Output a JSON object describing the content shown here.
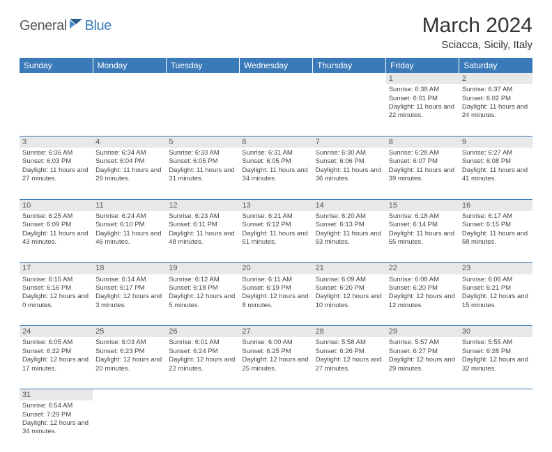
{
  "logo": {
    "text1": "General",
    "text2": "Blue"
  },
  "title": "March 2024",
  "location": "Sciacca, Sicily, Italy",
  "colors": {
    "header_bg": "#3a7ab8",
    "header_text": "#ffffff",
    "daynum_bg": "#e8e8e8",
    "rule": "#3a7ab8",
    "body_text": "#444"
  },
  "dayHeaders": [
    "Sunday",
    "Monday",
    "Tuesday",
    "Wednesday",
    "Thursday",
    "Friday",
    "Saturday"
  ],
  "weeks": [
    {
      "nums": [
        "",
        "",
        "",
        "",
        "",
        "1",
        "2"
      ],
      "cells": [
        null,
        null,
        null,
        null,
        null,
        {
          "sunrise": "6:38 AM",
          "sunset": "6:01 PM",
          "daylight": "11 hours and 22 minutes."
        },
        {
          "sunrise": "6:37 AM",
          "sunset": "6:02 PM",
          "daylight": "11 hours and 24 minutes."
        }
      ]
    },
    {
      "nums": [
        "3",
        "4",
        "5",
        "6",
        "7",
        "8",
        "9"
      ],
      "cells": [
        {
          "sunrise": "6:36 AM",
          "sunset": "6:03 PM",
          "daylight": "11 hours and 27 minutes."
        },
        {
          "sunrise": "6:34 AM",
          "sunset": "6:04 PM",
          "daylight": "11 hours and 29 minutes."
        },
        {
          "sunrise": "6:33 AM",
          "sunset": "6:05 PM",
          "daylight": "11 hours and 31 minutes."
        },
        {
          "sunrise": "6:31 AM",
          "sunset": "6:05 PM",
          "daylight": "11 hours and 34 minutes."
        },
        {
          "sunrise": "6:30 AM",
          "sunset": "6:06 PM",
          "daylight": "11 hours and 36 minutes."
        },
        {
          "sunrise": "6:28 AM",
          "sunset": "6:07 PM",
          "daylight": "11 hours and 39 minutes."
        },
        {
          "sunrise": "6:27 AM",
          "sunset": "6:08 PM",
          "daylight": "11 hours and 41 minutes."
        }
      ]
    },
    {
      "nums": [
        "10",
        "11",
        "12",
        "13",
        "14",
        "15",
        "16"
      ],
      "cells": [
        {
          "sunrise": "6:25 AM",
          "sunset": "6:09 PM",
          "daylight": "11 hours and 43 minutes."
        },
        {
          "sunrise": "6:24 AM",
          "sunset": "6:10 PM",
          "daylight": "11 hours and 46 minutes."
        },
        {
          "sunrise": "6:23 AM",
          "sunset": "6:11 PM",
          "daylight": "11 hours and 48 minutes."
        },
        {
          "sunrise": "6:21 AM",
          "sunset": "6:12 PM",
          "daylight": "11 hours and 51 minutes."
        },
        {
          "sunrise": "6:20 AM",
          "sunset": "6:13 PM",
          "daylight": "11 hours and 53 minutes."
        },
        {
          "sunrise": "6:18 AM",
          "sunset": "6:14 PM",
          "daylight": "11 hours and 55 minutes."
        },
        {
          "sunrise": "6:17 AM",
          "sunset": "6:15 PM",
          "daylight": "11 hours and 58 minutes."
        }
      ]
    },
    {
      "nums": [
        "17",
        "18",
        "19",
        "20",
        "21",
        "22",
        "23"
      ],
      "cells": [
        {
          "sunrise": "6:15 AM",
          "sunset": "6:16 PM",
          "daylight": "12 hours and 0 minutes."
        },
        {
          "sunrise": "6:14 AM",
          "sunset": "6:17 PM",
          "daylight": "12 hours and 3 minutes."
        },
        {
          "sunrise": "6:12 AM",
          "sunset": "6:18 PM",
          "daylight": "12 hours and 5 minutes."
        },
        {
          "sunrise": "6:11 AM",
          "sunset": "6:19 PM",
          "daylight": "12 hours and 8 minutes."
        },
        {
          "sunrise": "6:09 AM",
          "sunset": "6:20 PM",
          "daylight": "12 hours and 10 minutes."
        },
        {
          "sunrise": "6:08 AM",
          "sunset": "6:20 PM",
          "daylight": "12 hours and 12 minutes."
        },
        {
          "sunrise": "6:06 AM",
          "sunset": "6:21 PM",
          "daylight": "12 hours and 15 minutes."
        }
      ]
    },
    {
      "nums": [
        "24",
        "25",
        "26",
        "27",
        "28",
        "29",
        "30"
      ],
      "cells": [
        {
          "sunrise": "6:05 AM",
          "sunset": "6:22 PM",
          "daylight": "12 hours and 17 minutes."
        },
        {
          "sunrise": "6:03 AM",
          "sunset": "6:23 PM",
          "daylight": "12 hours and 20 minutes."
        },
        {
          "sunrise": "6:01 AM",
          "sunset": "6:24 PM",
          "daylight": "12 hours and 22 minutes."
        },
        {
          "sunrise": "6:00 AM",
          "sunset": "6:25 PM",
          "daylight": "12 hours and 25 minutes."
        },
        {
          "sunrise": "5:58 AM",
          "sunset": "6:26 PM",
          "daylight": "12 hours and 27 minutes."
        },
        {
          "sunrise": "5:57 AM",
          "sunset": "6:27 PM",
          "daylight": "12 hours and 29 minutes."
        },
        {
          "sunrise": "5:55 AM",
          "sunset": "6:28 PM",
          "daylight": "12 hours and 32 minutes."
        }
      ]
    },
    {
      "nums": [
        "31",
        "",
        "",
        "",
        "",
        "",
        ""
      ],
      "cells": [
        {
          "sunrise": "6:54 AM",
          "sunset": "7:29 PM",
          "daylight": "12 hours and 34 minutes."
        },
        null,
        null,
        null,
        null,
        null,
        null
      ]
    }
  ],
  "labels": {
    "sunrise": "Sunrise: ",
    "sunset": "Sunset: ",
    "daylight": "Daylight: "
  }
}
